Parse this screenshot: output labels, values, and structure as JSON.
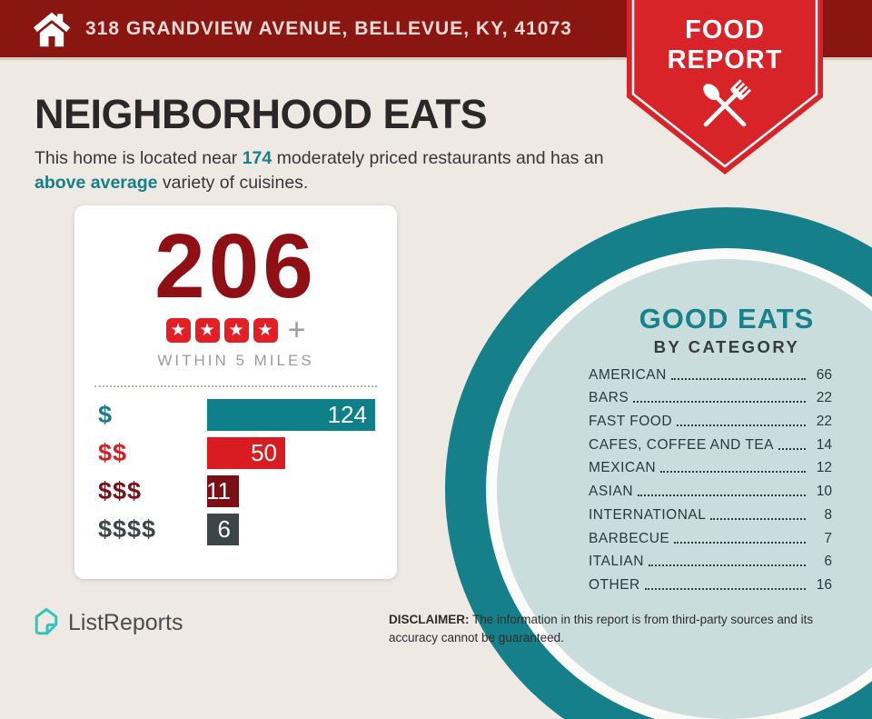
{
  "header": {
    "address": "318 GRANDVIEW AVENUE, BELLEVUE, KY, 41073"
  },
  "badge": {
    "line1": "FOOD",
    "line2": "REPORT"
  },
  "headline": {
    "title": "NEIGHBORHOOD EATS"
  },
  "subtitle": {
    "part1": "This home is located near ",
    "count": "174",
    "part2": " moderately priced restaurants and has an ",
    "highlight": "above average",
    "part3": " variety of cuisines."
  },
  "summary_card": {
    "total": "206",
    "star_count": 4,
    "plus": "+",
    "radius_label": "WITHIN 5 MILES"
  },
  "good_eats": {
    "title": "GOOD EATS",
    "subtitle": "BY CATEGORY"
  },
  "chart_data": [
    {
      "type": "bar",
      "title": "Restaurants by price level within 5 miles",
      "orientation": "horizontal",
      "categories": [
        "$",
        "$$",
        "$$$",
        "$$$$"
      ],
      "values": [
        124,
        50,
        11,
        6
      ],
      "bar_colors": [
        "#0f7f89",
        "#d91c22",
        "#7a1015",
        "#3c4548"
      ],
      "total": 206,
      "legend": "none",
      "grid": false
    },
    {
      "type": "table",
      "title": "GOOD EATS",
      "subtitle": "BY CATEGORY",
      "categories": [
        "AMERICAN",
        "BARS",
        "FAST FOOD",
        "CAFES, COFFEE AND TEA",
        "MEXICAN",
        "ASIAN",
        "INTERNATIONAL",
        "BARBECUE",
        "ITALIAN",
        "OTHER"
      ],
      "values": [
        66,
        22,
        22,
        14,
        12,
        10,
        8,
        7,
        6,
        16
      ]
    }
  ],
  "footer": {
    "brand": "ListReports",
    "disclaimer_label": "DISCLAIMER:",
    "disclaimer_text": " The information in this report is from third-party sources and its accuracy cannot be guaranteed."
  },
  "icons": {
    "home": "home-icon",
    "utensils": "spoon-and-fork-icon",
    "star": "star-icon",
    "logo": "listreports-logo-icon"
  },
  "colors": {
    "header_bg": "#8a1612",
    "badge_red": "#d82329",
    "accent_teal": "#15808a",
    "dark_red": "#8e1014",
    "bright_red": "#d91c22",
    "maroon": "#7a1015",
    "charcoal": "#3c4548",
    "circle_fill": "#c9dedc",
    "background": "#efe9e3",
    "logo_teal": "#35c3bc"
  }
}
